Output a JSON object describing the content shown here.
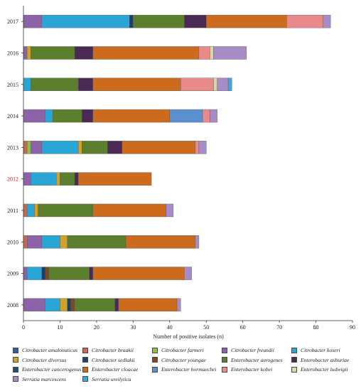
{
  "chart_data": {
    "type": "bar",
    "orientation": "horizontal",
    "stacked": true,
    "xlabel": "Number of positive isolates (n)",
    "ylabel": "",
    "xlim": [
      0,
      90
    ],
    "xticks": [
      0,
      10,
      20,
      30,
      40,
      50,
      60,
      70,
      80,
      90
    ],
    "grid": false,
    "legend_position": "bottom",
    "categories": [
      "2017",
      "2016",
      "2015",
      "2014",
      "2013",
      "2012",
      "2011",
      "2010",
      "2009",
      "2008"
    ],
    "highlighted_category": "2012",
    "highlight_color": "#d62020",
    "series": [
      {
        "name": "Citrobacter amalonaticus",
        "color": "#2f5fa8",
        "values": [
          0,
          0,
          0,
          0,
          0,
          0,
          0,
          0,
          0,
          0
        ]
      },
      {
        "name": "Citrobacter braakii",
        "color": "#c96a4c",
        "values": [
          0,
          0,
          0,
          0,
          1,
          0,
          1,
          1,
          0,
          0
        ]
      },
      {
        "name": "Citrobacter farmeri",
        "color": "#8fbf4a",
        "values": [
          0,
          0,
          0,
          0,
          1,
          0,
          0,
          0,
          0,
          0
        ]
      },
      {
        "name": "Citrobacter freundii",
        "color": "#8c63a8",
        "values": [
          5,
          1,
          0,
          6,
          3,
          2,
          0,
          4,
          1,
          6
        ]
      },
      {
        "name": "Citrobacter koseri",
        "color": "#2aa6d6",
        "values": [
          24,
          0,
          2,
          2,
          10,
          7,
          2,
          5,
          4,
          4
        ]
      },
      {
        "name": "Citrobacter diversus",
        "color": "#cfa32a",
        "values": [
          0,
          1,
          0,
          0,
          1,
          1,
          1,
          2,
          0,
          2
        ]
      },
      {
        "name": "Citrobacter sedlakii",
        "color": "#1e3f6e",
        "values": [
          1,
          0,
          0,
          0,
          0,
          0,
          0,
          0,
          1,
          1
        ]
      },
      {
        "name": "Citrobacter youngae",
        "color": "#7a4a26",
        "values": [
          0,
          0,
          0,
          0,
          0,
          0,
          0,
          0,
          1,
          1
        ]
      },
      {
        "name": "Enterobacter aerogenes",
        "color": "#5c7f2e",
        "values": [
          14,
          12,
          13,
          8,
          7,
          4,
          15,
          16,
          11,
          11
        ]
      },
      {
        "name": "Enterobacter asburiae",
        "color": "#4a2a55",
        "values": [
          6,
          5,
          4,
          3,
          4,
          1,
          0,
          0,
          1,
          1
        ]
      },
      {
        "name": "Enterobacter cancerogenus",
        "color": "#1f4f7a",
        "values": [
          0,
          0,
          0,
          0,
          0,
          0,
          0,
          0,
          0,
          0
        ]
      },
      {
        "name": "Enterobacter cloacae",
        "color": "#cc6a1e",
        "values": [
          22,
          29,
          24,
          21,
          20,
          20,
          20,
          19,
          25,
          16
        ]
      },
      {
        "name": "Enterobacter hormaechei",
        "color": "#5b8fd0",
        "values": [
          0,
          0,
          0,
          9,
          0,
          0,
          0,
          0,
          0,
          0
        ]
      },
      {
        "name": "Enterobacter kobei",
        "color": "#e88a8a",
        "values": [
          10,
          3,
          9,
          2,
          1,
          0,
          0,
          0,
          0,
          0
        ]
      },
      {
        "name": "Enterobacter ludwigii",
        "color": "#d9d7a8",
        "values": [
          0,
          1,
          1,
          0,
          0,
          0,
          0,
          0,
          0,
          0
        ]
      },
      {
        "name": "Serratia marcescens",
        "color": "#a88cc8",
        "values": [
          2,
          9,
          3,
          2,
          2,
          0,
          2,
          1,
          2,
          1
        ]
      },
      {
        "name": "Serratia ureilytica",
        "color": "#3aa8d8",
        "values": [
          0,
          0,
          1,
          0,
          0,
          0,
          0,
          0,
          0,
          0
        ]
      }
    ]
  }
}
